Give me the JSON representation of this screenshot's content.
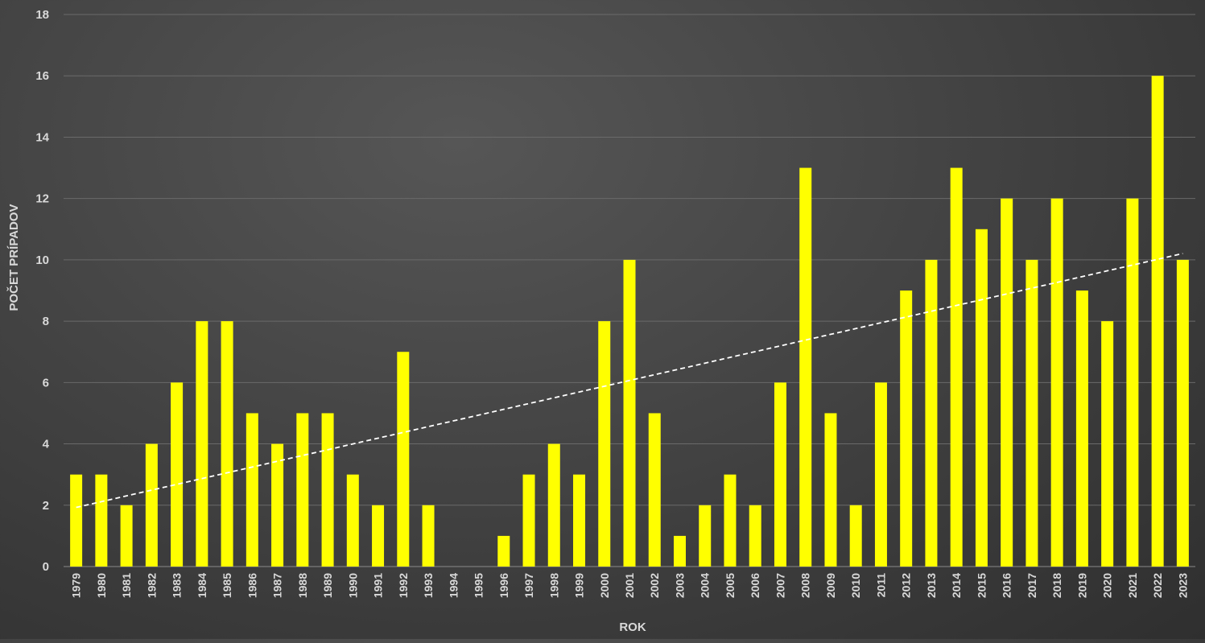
{
  "chart_data": {
    "type": "bar",
    "title": "",
    "xlabel": "ROK",
    "ylabel": "POČET PRÍPADOV",
    "ylim": [
      0,
      18
    ],
    "yticks": [
      "0",
      "2",
      "4",
      "6",
      "8",
      "10",
      "12",
      "14",
      "16",
      "18"
    ],
    "grid": true,
    "legend": "none",
    "trendline": "linear, dashed, white",
    "bar_color": "#ffff00",
    "trend_color": "#ffffff",
    "categories": [
      "1979",
      "1980",
      "1981",
      "1982",
      "1983",
      "1984",
      "1985",
      "1986",
      "1987",
      "1988",
      "1989",
      "1990",
      "1991",
      "1992",
      "1993",
      "1994",
      "1995",
      "1996",
      "1997",
      "1998",
      "1999",
      "2000",
      "2001",
      "2002",
      "2003",
      "2004",
      "2005",
      "2006",
      "2007",
      "2008",
      "2009",
      "2010",
      "2011",
      "2012",
      "2013",
      "2014",
      "2015",
      "2016",
      "2017",
      "2018",
      "2019",
      "2020",
      "2021",
      "2022",
      "2023"
    ],
    "values": [
      3,
      3,
      2,
      4,
      6,
      8,
      8,
      5,
      4,
      5,
      5,
      3,
      2,
      7,
      2,
      0,
      0,
      1,
      3,
      4,
      3,
      8,
      10,
      5,
      1,
      2,
      3,
      2,
      6,
      13,
      5,
      2,
      6,
      9,
      10,
      13,
      11,
      12,
      10,
      12,
      9,
      8,
      12,
      16,
      10
    ]
  }
}
